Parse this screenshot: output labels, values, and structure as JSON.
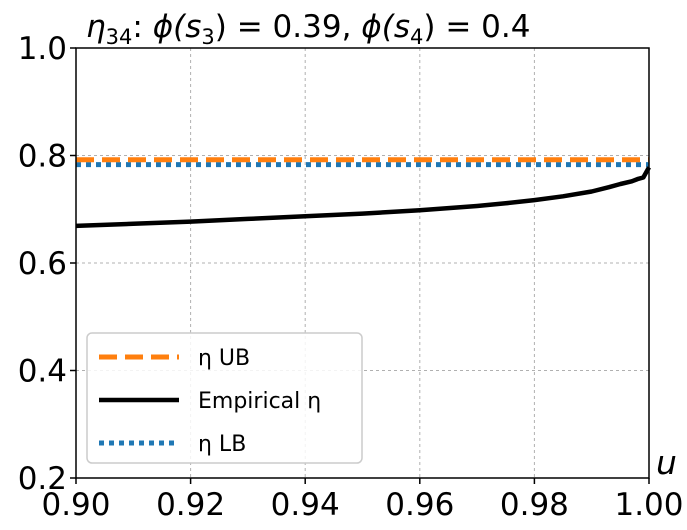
{
  "chart_data": {
    "type": "line",
    "title": "η₃₄: ϕ(s₃) = 0.39, ϕ(s₄) = 0.4",
    "title_parts": {
      "eta": "η",
      "eta_sub": "34",
      "phi1": "ϕ(s",
      "phi1_sub": "3",
      "phi1_rest": ") = 0.39, ",
      "phi2": "ϕ(s",
      "phi2_sub": "4",
      "phi2_rest": ") = 0.4"
    },
    "xlabel": "u",
    "ylabel": "",
    "xlim": [
      0.9,
      1.0
    ],
    "ylim": [
      0.2,
      1.0
    ],
    "xticks": [
      "0.90",
      "0.92",
      "0.94",
      "0.96",
      "0.98",
      "1.00"
    ],
    "yticks": [
      "0.2",
      "0.4",
      "0.6",
      "0.8",
      "1.0"
    ],
    "grid": true,
    "legend_position": "bottom-left",
    "series": [
      {
        "name": "η UB",
        "style": "dashed",
        "color": "#ff7f0e",
        "x": [
          0.9,
          1.0
        ],
        "y": [
          0.792,
          0.792
        ]
      },
      {
        "name": "Empirical η",
        "style": "solid",
        "color": "#000000",
        "x": [
          0.9,
          0.91,
          0.92,
          0.93,
          0.94,
          0.95,
          0.96,
          0.97,
          0.975,
          0.98,
          0.985,
          0.99,
          0.993,
          0.995,
          0.997,
          0.998,
          0.999,
          1.0
        ],
        "y": [
          0.669,
          0.673,
          0.677,
          0.682,
          0.687,
          0.692,
          0.698,
          0.706,
          0.711,
          0.717,
          0.724,
          0.733,
          0.741,
          0.747,
          0.752,
          0.756,
          0.759,
          0.778
        ]
      },
      {
        "name": "η LB",
        "style": "dotted",
        "color": "#1f77b4",
        "x": [
          0.9,
          1.0
        ],
        "y": [
          0.783,
          0.783
        ]
      }
    ]
  }
}
